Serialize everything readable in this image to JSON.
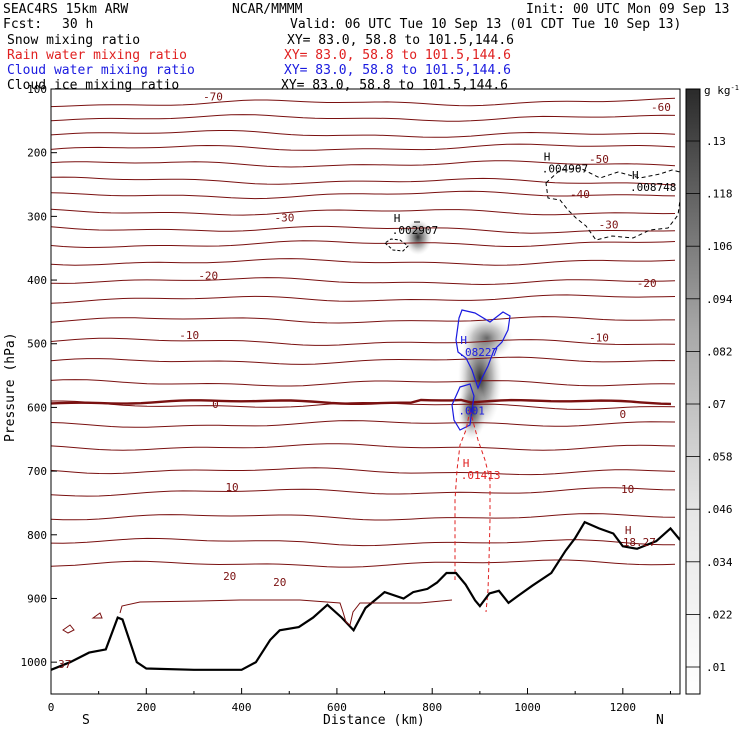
{
  "header": {
    "model": "SEAC4RS 15km ARW",
    "center": "NCAR/MMMM",
    "init": "Init: 00 UTC Mon 09 Sep 13",
    "fcst_label": "Fcst:",
    "fcst_value": "30 h",
    "valid": "Valid: 06 UTC Tue 10 Sep 13 (01 CDT Tue 10 Sep 13)"
  },
  "fields": [
    {
      "name": "Snow mixing ratio",
      "xy": "XY=  83.0, 58.8 to 101.5,144.6",
      "color": "#000000"
    },
    {
      "name": "Rain water mixing ratio",
      "xy": "XY=  83.0, 58.8 to 101.5,144.6",
      "color": "#e02020"
    },
    {
      "name": "Cloud water mixing ratio",
      "xy": "XY=  83.0, 58.8 to 101.5,144.6",
      "color": "#1a1ae0"
    },
    {
      "name": "Cloud ice mixing ratio",
      "xy": "XY=  83.0, 58.8 to 101.5,144.6",
      "color": "#000000"
    }
  ],
  "colors": {
    "temperature": "#7a1010",
    "rain": "#e02020",
    "cloud_water": "#1a1ae0",
    "ice": "#000000",
    "terrain": "#000000"
  },
  "chart_data": {
    "type": "contour-cross-section",
    "xlabel": "Distance (km)",
    "ylabel": "Pressure (hPa)",
    "xlim": [
      0,
      1320
    ],
    "ylim": [
      1050,
      100
    ],
    "x_ticks": [
      0,
      200,
      400,
      600,
      800,
      1000,
      1200
    ],
    "y_ticks": [
      200,
      300,
      400,
      500,
      600,
      700,
      800,
      900,
      1000
    ],
    "y_top_tick_label": "100",
    "endpoints": {
      "left": "S",
      "right": "N"
    },
    "temperature_contour_labels": [
      {
        "text": "-70",
        "x": 340,
        "p": 112
      },
      {
        "text": "-60",
        "x": 1280,
        "p": 128
      },
      {
        "text": "-50",
        "x": 1150,
        "p": 210
      },
      {
        "text": "-40",
        "x": 1110,
        "p": 265
      },
      {
        "text": "-30",
        "x": 490,
        "p": 302
      },
      {
        "text": "-30",
        "x": 1170,
        "p": 313
      },
      {
        "text": "-20",
        "x": 330,
        "p": 393
      },
      {
        "text": "-20",
        "x": 1250,
        "p": 405
      },
      {
        "text": "-10",
        "x": 290,
        "p": 486
      },
      {
        "text": "-10",
        "x": 1150,
        "p": 490
      },
      {
        "text": "0",
        "x": 345,
        "p": 595
      },
      {
        "text": "0",
        "x": 1200,
        "p": 610
      },
      {
        "text": "10",
        "x": 380,
        "p": 725
      },
      {
        "text": "10",
        "x": 1210,
        "p": 728
      },
      {
        "text": "20",
        "x": 375,
        "p": 865
      },
      {
        "text": "20",
        "x": 480,
        "p": 874
      }
    ],
    "extrema_labels": [
      {
        "text": "H",
        "value": ".002907",
        "x": 715,
        "p": 318,
        "color": "#000000"
      },
      {
        "text": "H",
        "value": ".004907",
        "x": 1030,
        "p": 222,
        "color": "#000000"
      },
      {
        "text": "H",
        "value": ".008748",
        "x": 1215,
        "p": 251,
        "color": "#000000"
      },
      {
        "text": "H",
        "value": ".08227",
        "x": 855,
        "p": 510,
        "color": "#1a1ae0"
      },
      {
        "text": "",
        "value": ".001",
        "x": 855,
        "p": 602,
        "color": "#1a1ae0"
      },
      {
        "text": "H",
        "value": ".01413",
        "x": 860,
        "p": 703,
        "color": "#e02020"
      },
      {
        "text": "H",
        "value": "18.27",
        "x": 1200,
        "p": 808,
        "color": "#7a1010"
      },
      {
        "text": "",
        "value": "37",
        "x": 15,
        "p": 1000,
        "color": "#7a1010"
      }
    ],
    "colorbar": {
      "unit": "g kg",
      "unit_exp": "-1",
      "ticks": [
        ".01",
        ".022",
        ".034",
        ".046",
        ".058",
        ".07",
        ".082",
        ".094",
        ".106",
        ".118",
        ".13"
      ]
    },
    "terrain_p": [
      [
        0,
        1012
      ],
      [
        40,
        1000
      ],
      [
        80,
        985
      ],
      [
        115,
        980
      ],
      [
        140,
        930
      ],
      [
        150,
        933
      ],
      [
        180,
        1000
      ],
      [
        200,
        1010
      ],
      [
        300,
        1012
      ],
      [
        400,
        1012
      ],
      [
        430,
        1000
      ],
      [
        460,
        965
      ],
      [
        480,
        950
      ],
      [
        520,
        945
      ],
      [
        550,
        930
      ],
      [
        580,
        910
      ],
      [
        610,
        930
      ],
      [
        635,
        950
      ],
      [
        660,
        915
      ],
      [
        700,
        890
      ],
      [
        740,
        900
      ],
      [
        760,
        890
      ],
      [
        790,
        885
      ],
      [
        810,
        875
      ],
      [
        830,
        860
      ],
      [
        850,
        860
      ],
      [
        870,
        878
      ],
      [
        890,
        903
      ],
      [
        900,
        912
      ],
      [
        920,
        892
      ],
      [
        940,
        888
      ],
      [
        960,
        907
      ],
      [
        980,
        896
      ],
      [
        1010,
        880
      ],
      [
        1050,
        860
      ],
      [
        1080,
        825
      ],
      [
        1100,
        805
      ],
      [
        1120,
        780
      ],
      [
        1150,
        790
      ],
      [
        1180,
        798
      ],
      [
        1200,
        818
      ],
      [
        1230,
        822
      ],
      [
        1270,
        810
      ],
      [
        1300,
        790
      ],
      [
        1320,
        808
      ]
    ]
  }
}
